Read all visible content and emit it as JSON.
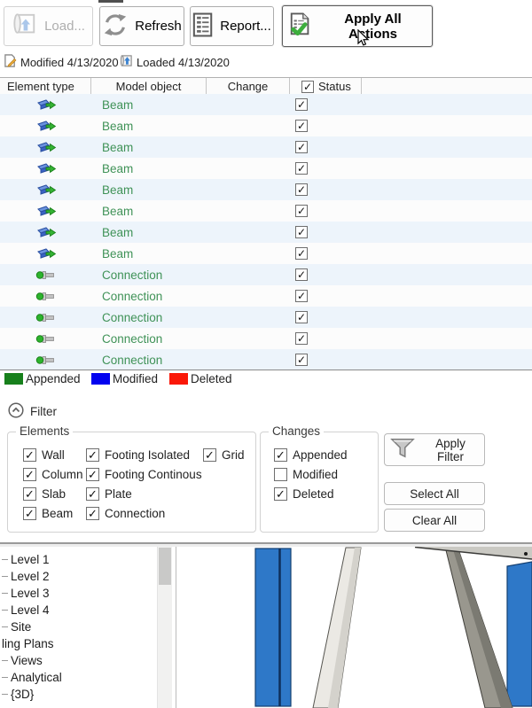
{
  "toolbar": {
    "load_label": "Load...",
    "refresh_label": "Refresh",
    "report_label": "Report...",
    "apply_all_label": "Apply All Actions"
  },
  "status_line": {
    "modified_label": "Modified 4/13/2020",
    "loaded_label": "Loaded 4/13/2020"
  },
  "table": {
    "columns": [
      "Element type",
      "Model object",
      "Change",
      "Status"
    ],
    "header_status_checked": true,
    "rows": [
      {
        "element_type": "beam",
        "model_object": "Beam",
        "change": "",
        "status_checked": true
      },
      {
        "element_type": "beam",
        "model_object": "Beam",
        "change": "",
        "status_checked": true
      },
      {
        "element_type": "beam",
        "model_object": "Beam",
        "change": "",
        "status_checked": true
      },
      {
        "element_type": "beam",
        "model_object": "Beam",
        "change": "",
        "status_checked": true
      },
      {
        "element_type": "beam",
        "model_object": "Beam",
        "change": "",
        "status_checked": true
      },
      {
        "element_type": "beam",
        "model_object": "Beam",
        "change": "",
        "status_checked": true
      },
      {
        "element_type": "beam",
        "model_object": "Beam",
        "change": "",
        "status_checked": true
      },
      {
        "element_type": "beam",
        "model_object": "Beam",
        "change": "",
        "status_checked": true
      },
      {
        "element_type": "connection",
        "model_object": "Connection",
        "change": "",
        "status_checked": true
      },
      {
        "element_type": "connection",
        "model_object": "Connection",
        "change": "",
        "status_checked": true
      },
      {
        "element_type": "connection",
        "model_object": "Connection",
        "change": "",
        "status_checked": true
      },
      {
        "element_type": "connection",
        "model_object": "Connection",
        "change": "",
        "status_checked": true
      },
      {
        "element_type": "connection",
        "model_object": "Connection",
        "change": "",
        "status_checked": true
      }
    ]
  },
  "legend": {
    "items": [
      {
        "label": "Appended",
        "color": "#17801c"
      },
      {
        "label": "Modified",
        "color": "#0202ef"
      },
      {
        "label": "Deleted",
        "color": "#fa1808"
      }
    ]
  },
  "filter": {
    "title": "Filter",
    "elements_group": {
      "label": "Elements",
      "columns": [
        [
          {
            "label": "Wall",
            "checked": true
          },
          {
            "label": "Column",
            "checked": true
          },
          {
            "label": "Slab",
            "checked": true
          },
          {
            "label": "Beam",
            "checked": true
          }
        ],
        [
          {
            "label": "Footing Isolated",
            "checked": true
          },
          {
            "label": "Footing Continous",
            "checked": true
          },
          {
            "label": "Plate",
            "checked": true
          },
          {
            "label": "Connection",
            "checked": true
          }
        ],
        [
          {
            "label": "Grid",
            "checked": true
          }
        ]
      ]
    },
    "changes_group": {
      "label": "Changes",
      "items": [
        {
          "label": "Appended",
          "checked": true
        },
        {
          "label": "Modified",
          "checked": false
        },
        {
          "label": "Deleted",
          "checked": true
        }
      ]
    },
    "apply_filter_label": "Apply Filter",
    "select_all_label": "Select All",
    "clear_all_label": "Clear All"
  },
  "project_browser": {
    "items": [
      {
        "label": "Level 1",
        "dash": true
      },
      {
        "label": "Level 2",
        "dash": true
      },
      {
        "label": "Level 3",
        "dash": true
      },
      {
        "label": "Level 4",
        "dash": true
      },
      {
        "label": "Site",
        "dash": true
      },
      {
        "label": "ling Plans",
        "dash": false
      },
      {
        "label": "Views",
        "dash": true
      },
      {
        "label": "Analytical",
        "dash": true
      },
      {
        "label": "{3D}",
        "dash": true
      }
    ]
  },
  "colors": {
    "model_column_blue": "#2e78c8",
    "row_text_green": "#3f9257",
    "table_alt_row": "#edf4fb"
  }
}
